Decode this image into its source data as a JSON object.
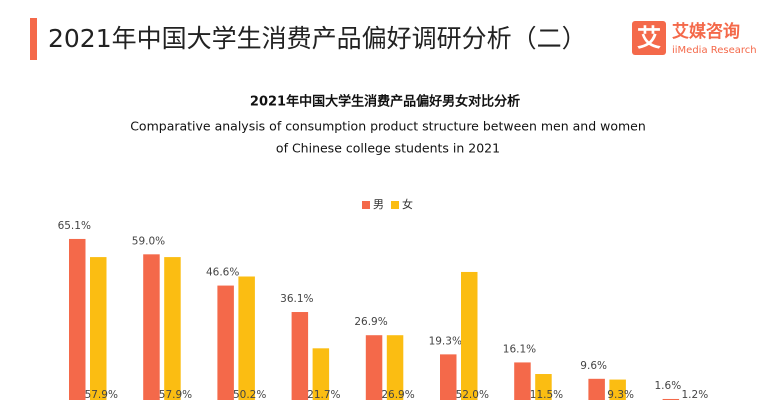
{
  "header": {
    "title": "2021年中国大学生消费产品偏好调研分析（二）",
    "logo": {
      "icon": "艾",
      "name": "艾媒咨询",
      "en": "iiMedia Research"
    }
  },
  "chart_data": {
    "type": "bar",
    "title": "2021年中国大学生消费产品偏好男女对比分析",
    "subtitle": [
      "Comparative analysis of consumption product structure between men and women",
      "of Chinese college students in 2021"
    ],
    "categories": [
      null,
      null,
      null,
      null,
      null,
      null,
      null,
      null,
      null
    ],
    "series": [
      {
        "name": "男",
        "color": "#f4694a",
        "values": [
          65.1,
          59.0,
          46.6,
          36.1,
          26.9,
          19.3,
          16.1,
          9.6,
          1.6
        ],
        "value_labels": [
          "65.1%",
          "59.0%",
          "46.6%",
          "36.1%",
          "26.9%",
          "19.3%",
          "16.1%",
          "9.6%",
          "1.6%"
        ]
      },
      {
        "name": "女",
        "color": "#fbbd12",
        "values": [
          57.9,
          57.9,
          50.2,
          21.7,
          26.9,
          52.0,
          11.5,
          9.3,
          1.2
        ],
        "value_labels": [
          "57.9%",
          "57.9%",
          "50.2%",
          "21.7%",
          "26.9%",
          "52.0%",
          "11.5%",
          "9.3%",
          "1.2%"
        ]
      }
    ],
    "legend": "top"
  }
}
